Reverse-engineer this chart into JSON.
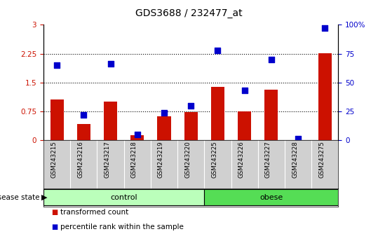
{
  "title": "GDS3688 / 232477_at",
  "samples": [
    "GSM243215",
    "GSM243216",
    "GSM243217",
    "GSM243218",
    "GSM243219",
    "GSM243220",
    "GSM243225",
    "GSM243226",
    "GSM243227",
    "GSM243228",
    "GSM243275"
  ],
  "transformed_count": [
    1.05,
    0.42,
    1.0,
    0.12,
    0.62,
    0.73,
    1.38,
    0.75,
    1.32,
    0.0,
    2.26
  ],
  "percentile_rank": [
    65,
    22,
    66,
    5,
    24,
    30,
    78,
    43,
    70,
    1,
    97
  ],
  "groups": [
    {
      "label": "control",
      "start": 0,
      "end": 6,
      "color": "#bbffbb"
    },
    {
      "label": "obese",
      "start": 6,
      "end": 11,
      "color": "#55dd55"
    }
  ],
  "bar_color": "#cc1100",
  "dot_color": "#0000cc",
  "ylim_left": [
    0,
    3
  ],
  "ylim_right": [
    0,
    100
  ],
  "yticks_left": [
    0,
    0.75,
    1.5,
    2.25,
    3
  ],
  "yticks_right": [
    0,
    25,
    50,
    75,
    100
  ],
  "ytick_labels_left": [
    "0",
    "0.75",
    "1.5",
    "2.25",
    "3"
  ],
  "ytick_labels_right": [
    "0",
    "25",
    "50",
    "75",
    "100%"
  ],
  "hlines": [
    0.75,
    1.5,
    2.25
  ],
  "legend_items": [
    {
      "label": "transformed count",
      "color": "#cc1100"
    },
    {
      "label": "percentile rank within the sample",
      "color": "#0000cc"
    }
  ],
  "bar_width": 0.5,
  "dot_size": 35,
  "tick_area_color": "#d0d0d0",
  "left_tick_color": "#cc1100",
  "right_tick_color": "#0000cc",
  "disease_state_label": "disease state"
}
